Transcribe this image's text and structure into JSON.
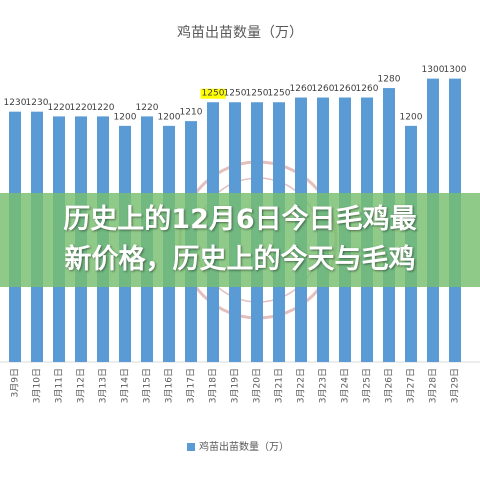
{
  "chart_data": {
    "type": "bar",
    "title": "鸡苗出苗数量（万）",
    "categories": [
      "3月9日",
      "3月10日",
      "3月11日",
      "3月12日",
      "3月13日",
      "3月14日",
      "3月15日",
      "3月16日",
      "3月17日",
      "3月18日",
      "3月19日",
      "3月20日",
      "3月21日",
      "3月22日",
      "3月23日",
      "3月24日",
      "3月25日",
      "3月26日",
      "3月27日",
      "3月28日",
      "3月29日"
    ],
    "series": [
      {
        "name": "鸡苗出苗数量（万）",
        "color": "#5b9bd5",
        "values": [
          1230,
          1230,
          1220,
          1220,
          1220,
          1200,
          1220,
          1200,
          1210,
          1250,
          1250,
          1250,
          1250,
          1260,
          1260,
          1260,
          1260,
          1280,
          1200,
          1300,
          1300
        ]
      }
    ],
    "ylim": [
      700,
      1350
    ],
    "highlight_color": "#ffff00",
    "legend": "bottom"
  },
  "banner": {
    "lines": [
      "历史上的12月6日今日毛鸡最",
      "新价格，历史上的今天与毛鸡"
    ]
  }
}
